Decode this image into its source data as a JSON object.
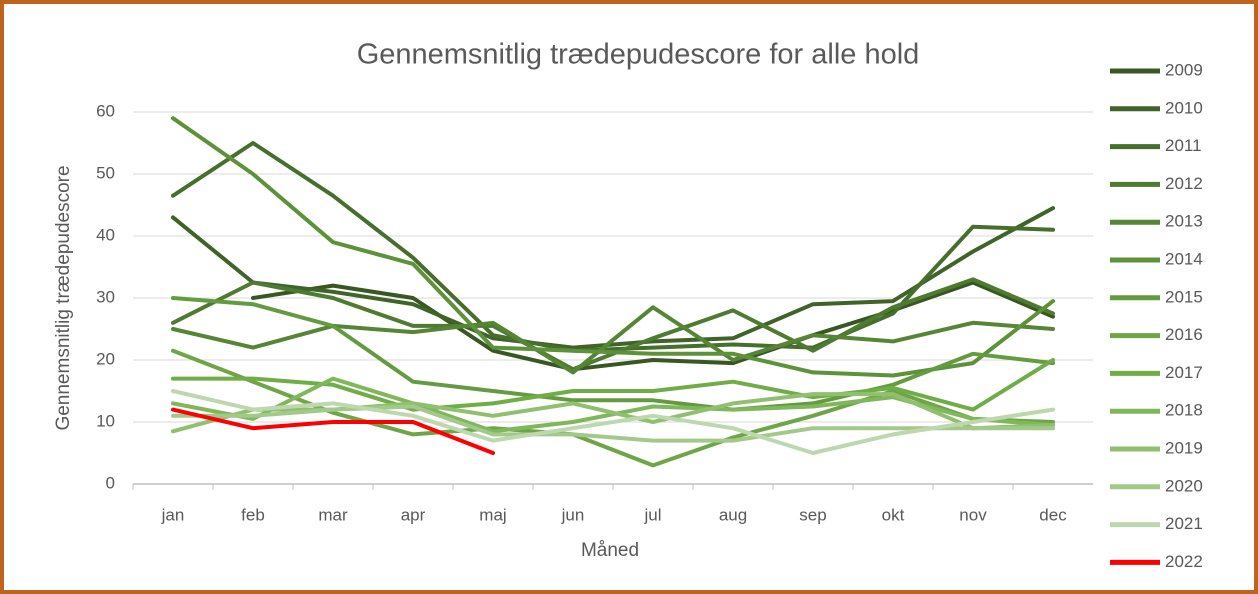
{
  "chart_data": {
    "type": "line",
    "title": "Gennemsnitlig trædepudescore for alle hold",
    "x_label": "Måned",
    "y_label": "Gennemsnitlig trædepudescore",
    "categories": [
      "jan",
      "feb",
      "mar",
      "apr",
      "maj",
      "jun",
      "jul",
      "aug",
      "sep",
      "okt",
      "nov",
      "dec"
    ],
    "ylim": [
      0,
      60
    ],
    "yticks": [
      0,
      10,
      20,
      30,
      40,
      50,
      60
    ],
    "grid": true,
    "legend": "right",
    "series": [
      {
        "name": "2009",
        "color": "#385723",
        "values": [
          null,
          30,
          32,
          30,
          21.5,
          18.5,
          20,
          19.5,
          24,
          28,
          32.5,
          27
        ]
      },
      {
        "name": "2010",
        "color": "#3f6328",
        "values": [
          43,
          32.5,
          31,
          29,
          23.5,
          22,
          23,
          23.5,
          29,
          29.5,
          37.5,
          44.5
        ]
      },
      {
        "name": "2011",
        "color": "#466e2c",
        "values": [
          46.5,
          55,
          46.5,
          36.5,
          24,
          21.5,
          22,
          22.5,
          22,
          27.5,
          41.5,
          41
        ]
      },
      {
        "name": "2012",
        "color": "#4e7a31",
        "values": [
          26,
          32.5,
          30,
          25.5,
          25.5,
          18.5,
          23.5,
          28,
          21.5,
          28.5,
          33,
          27.5
        ]
      },
      {
        "name": "2013",
        "color": "#558535",
        "values": [
          25,
          22,
          25.5,
          24.5,
          26,
          18,
          28.5,
          20,
          24,
          23,
          26,
          25
        ]
      },
      {
        "name": "2014",
        "color": "#5d913a",
        "values": [
          59,
          50,
          39,
          35.5,
          22,
          21.5,
          21,
          21,
          18,
          17.5,
          19.5,
          29.5
        ]
      },
      {
        "name": "2015",
        "color": "#659b40",
        "values": [
          30,
          29,
          25.5,
          16.5,
          15,
          13.5,
          13.5,
          12,
          13,
          16,
          21,
          19.5
        ]
      },
      {
        "name": "2016",
        "color": "#6fa547",
        "values": [
          21.5,
          16.5,
          11.5,
          8,
          9,
          8,
          3,
          7.5,
          11,
          15,
          10.5,
          10
        ]
      },
      {
        "name": "2017",
        "color": "#70ad47",
        "values": [
          17,
          17,
          16,
          12,
          13,
          15,
          15,
          16.5,
          14,
          15.5,
          12,
          20
        ]
      },
      {
        "name": "2018",
        "color": "#80b75a",
        "values": [
          13,
          10.5,
          17,
          13,
          8.5,
          10,
          12.5,
          12,
          12.5,
          14,
          10.5,
          9.5
        ]
      },
      {
        "name": "2019",
        "color": "#90c06f",
        "values": [
          8.5,
          12,
          12,
          13,
          11,
          13,
          10,
          13,
          14.5,
          14.5,
          9,
          9.5
        ]
      },
      {
        "name": "2020",
        "color": "#a2c98a",
        "values": [
          11,
          11,
          12,
          12.5,
          8,
          8,
          7,
          7,
          9,
          9,
          9,
          9
        ]
      },
      {
        "name": "2021",
        "color": "#bdd7ae",
        "values": [
          15,
          12,
          13,
          11,
          7,
          9,
          11,
          9,
          5,
          8,
          10,
          12
        ]
      },
      {
        "name": "2022",
        "color": "#ff0000",
        "values": [
          12,
          9,
          10,
          10,
          5,
          null,
          null,
          null,
          null,
          null,
          null,
          null
        ]
      }
    ]
  }
}
